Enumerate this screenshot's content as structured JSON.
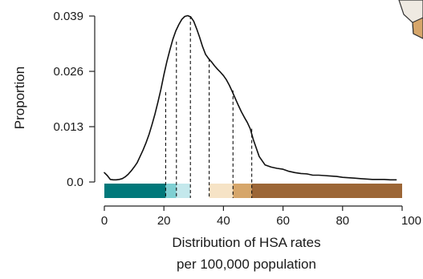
{
  "chart_data": {
    "type": "line",
    "xlabel_lines": [
      "Distribution of HSA rates",
      "per 100,000 population"
    ],
    "ylabel": "Proportion",
    "xlim": [
      0,
      100
    ],
    "ylim": [
      0.0,
      0.039
    ],
    "x_ticks": [
      0,
      20,
      40,
      60,
      80,
      100
    ],
    "x_tick_labels": [
      "0",
      "20",
      "40",
      "60",
      "80",
      "100"
    ],
    "y_ticks": [
      0.0,
      0.013,
      0.026,
      0.039
    ],
    "y_tick_labels": [
      "0.0",
      "0.013",
      "0.026",
      "0.039"
    ],
    "grid": false,
    "series": [
      {
        "x": [
          0,
          1,
          2,
          3,
          4,
          5,
          6,
          7,
          8,
          9,
          10,
          11,
          12,
          13,
          14,
          15,
          16,
          17,
          18,
          19,
          20,
          21,
          22,
          23,
          24,
          25,
          26,
          27,
          28,
          29,
          30,
          31,
          32,
          33,
          34,
          35,
          36,
          37,
          38,
          39,
          40,
          41,
          42,
          43,
          44,
          45,
          46,
          47,
          48,
          49,
          50,
          52,
          54,
          56,
          58,
          60,
          62,
          64,
          66,
          68,
          70,
          72,
          74,
          76,
          78,
          80,
          82,
          84,
          86,
          88,
          90,
          92,
          94,
          96,
          98
        ],
        "y": [
          0.0022,
          0.0015,
          0.0006,
          0.0005,
          0.0005,
          0.0006,
          0.0008,
          0.0012,
          0.0018,
          0.0026,
          0.0035,
          0.0045,
          0.006,
          0.0075,
          0.0092,
          0.0112,
          0.0135,
          0.016,
          0.0188,
          0.0218,
          0.0252,
          0.0283,
          0.031,
          0.0335,
          0.0355,
          0.037,
          0.0382,
          0.0389,
          0.0391,
          0.0388,
          0.0378,
          0.036,
          0.034,
          0.0318,
          0.03,
          0.029,
          0.0282,
          0.0273,
          0.0265,
          0.0258,
          0.025,
          0.024,
          0.0227,
          0.0212,
          0.0196,
          0.018,
          0.0165,
          0.0152,
          0.014,
          0.0125,
          0.01,
          0.006,
          0.004,
          0.0035,
          0.0032,
          0.003,
          0.0025,
          0.0022,
          0.002,
          0.0019,
          0.0016,
          0.0016,
          0.0015,
          0.0014,
          0.0013,
          0.0011,
          0.001,
          0.0009,
          0.0008,
          0.0007,
          0.0006,
          0.0006,
          0.0006,
          0.0005,
          0.0005
        ]
      }
    ],
    "cutoffs": [
      {
        "x": 20.6,
        "y": 0.0211
      },
      {
        "x": 24.2,
        "y": 0.033
      },
      {
        "x": 28.9,
        "y": 0.039
      },
      {
        "x": 35.2,
        "y": 0.029
      },
      {
        "x": 43.2,
        "y": 0.0215
      },
      {
        "x": 49.5,
        "y": 0.0125
      }
    ],
    "color_bands": [
      {
        "from": 0,
        "to": 20.6,
        "color": "#00787a"
      },
      {
        "from": 20.6,
        "to": 24.2,
        "color": "#7fcfd2"
      },
      {
        "from": 24.2,
        "to": 28.9,
        "color": "#c4e8ec"
      },
      {
        "from": 28.9,
        "to": 35.2,
        "color": "#ffffff"
      },
      {
        "from": 35.2,
        "to": 43.2,
        "color": "#f6e3c6"
      },
      {
        "from": 43.2,
        "to": 49.5,
        "color": "#d6a66a"
      },
      {
        "from": 49.5,
        "to": 100,
        "color": "#9c6636"
      }
    ],
    "colors": {
      "line": "#111111",
      "axis": "#222222",
      "corner_shape_fill": "#d6a66a",
      "corner_shape_light": "#efeae2"
    }
  }
}
